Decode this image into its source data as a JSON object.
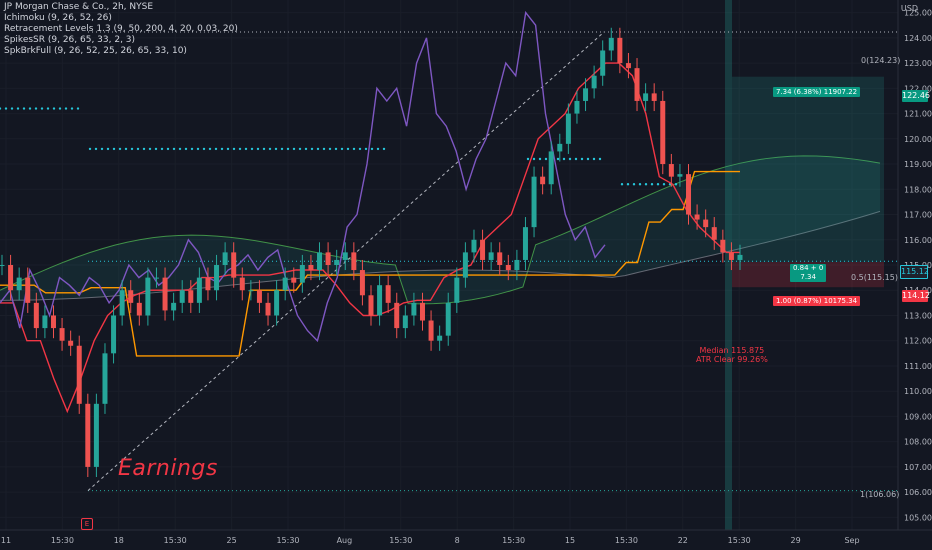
{
  "legend": {
    "title": "JP Morgan Chase & Co., 2h, NYSE",
    "l1": "Ichimoku (9, 26, 52, 26)",
    "l2": "Retracement Levels 1.3 (9, 50, 200, 4, 20, 0.03, 20)",
    "l3": "SpikesSR (9, 26, 65, 33, 2, 3)",
    "l4": "SpkBrkFull (9, 26, 52, 25, 26, 65, 33, 10)"
  },
  "currency": "USD",
  "annotation": "Earnings",
  "fib": {
    "top": "0(124.23)",
    "mid": "0.5(115.15)",
    "bottom": "1(106.06)"
  },
  "position": {
    "target_label": "7.34 (6.38%) 11907.22",
    "stop_label": "1.00 (0.87%) 10175.34",
    "center_line1": "0.84 + 0",
    "center_line2": "7.34"
  },
  "stats": {
    "median": "Median 115.875",
    "atr": "ATR Clear 99.26%"
  },
  "price_tags": {
    "target": "122.46",
    "current": "115.12",
    "stop": "114.12"
  },
  "colors": {
    "up": "#26a69a",
    "down": "#ef5350",
    "bg": "#131722",
    "grid": "#1e222d",
    "accent": "#2962ff"
  },
  "chart_data": {
    "type": "line",
    "title": "JP Morgan Chase & Co., 2h, NYSE",
    "ylim": [
      104.5,
      125.5
    ],
    "y_ticks": [
      105,
      106,
      107,
      108,
      109,
      110,
      111,
      112,
      113,
      114,
      115,
      116,
      117,
      118,
      119,
      120,
      121,
      122,
      123,
      124,
      125
    ],
    "x_ticks": [
      "11",
      "15:30",
      "18",
      "15:30",
      "25",
      "15:30",
      "Aug",
      "15:30",
      "8",
      "15:30",
      "15",
      "15:30",
      "22",
      "15:30",
      "29",
      "Sep"
    ],
    "series": [
      {
        "name": "Close",
        "values": [
          115,
          114,
          114.5,
          113.5,
          112.5,
          113,
          112.5,
          112,
          111.8,
          109.5,
          107,
          109.5,
          111.5,
          113,
          114,
          113.5,
          113,
          114.5,
          114.5,
          113.2,
          113.5,
          114,
          113.5,
          114.5,
          114,
          115,
          115.5,
          114.5,
          114,
          114,
          113.5,
          113,
          114,
          114.5,
          114.3,
          115,
          114.8,
          115.5,
          115,
          115.2,
          115.5,
          114.8,
          113.8,
          113,
          114.2,
          113.5,
          112.5,
          113,
          113.5,
          112.8,
          112,
          112.2,
          113.5,
          114.5,
          115.5,
          116,
          115.2,
          115.5,
          115,
          114.8,
          115.2,
          116.5,
          118.5,
          118.2,
          119.5,
          119.8,
          121,
          121.5,
          122,
          122.5,
          123.5,
          124,
          123,
          122.8,
          121.5,
          121.8,
          121.5,
          119,
          118.5,
          118.6,
          117,
          116.8,
          116.5,
          116,
          115.5,
          115.2,
          115.4
        ]
      },
      {
        "name": "Ichimoku Lagging",
        "values": [
          113.5,
          114,
          112.5,
          114.8,
          114,
          113,
          114.5,
          114.2,
          113.8,
          114.5,
          114.2,
          113.5,
          114,
          115,
          114.5,
          114.8,
          114.2,
          114.5,
          115,
          116,
          115.5,
          114.5,
          114.3,
          114.8,
          115,
          115.4,
          114.8,
          115.3,
          115.6,
          114.2,
          113,
          112.4,
          112,
          113.5,
          114.5,
          116.5,
          117,
          119,
          122,
          121.5,
          122,
          120.5,
          123,
          124,
          121,
          120.5,
          119.5,
          118,
          119.2,
          120,
          121.5,
          123,
          122.5,
          125,
          124.5,
          121,
          119,
          117,
          116,
          116.5,
          115.3,
          115.8
        ]
      },
      {
        "name": "Ichimoku Base",
        "values": [
          114.2,
          114.2,
          114.2,
          114.2,
          113.9,
          113.9,
          113.9,
          113.9,
          114.1,
          114.1,
          114.1,
          114.1,
          111.4,
          111.4,
          111.4,
          111.4,
          111.4,
          111.4,
          111.4,
          111.4,
          111.4,
          111.4,
          114,
          114,
          114,
          114,
          114,
          114.6,
          114.6,
          114.6,
          114.6,
          114.6,
          114.6,
          114.6,
          114.6,
          114.6,
          114.6,
          114.6,
          114.6,
          114.6,
          114.6,
          114.6,
          114.6,
          114.6,
          114.6,
          114.6,
          114.6,
          114.6,
          114.6,
          114.6,
          114.6,
          114.6,
          114.6,
          114.6,
          114.6,
          115.1,
          115.1,
          116.7,
          116.7,
          117.2,
          117.2,
          118.7,
          118.7,
          118.7,
          118.7,
          118.7
        ]
      },
      {
        "name": "Ichimoku Conversion",
        "values": [
          113.5,
          113.5,
          112,
          112,
          110.5,
          109.2,
          110.5,
          112,
          113,
          113.5,
          113.8,
          114,
          114,
          114,
          114,
          114.5,
          114.5,
          114.6,
          114.6,
          114.6,
          114.6,
          114.7,
          114.8,
          114.8,
          114.8,
          114.2,
          113.5,
          113,
          113,
          113.2,
          113.5,
          113.6,
          113.6,
          114.5,
          114.8,
          115,
          116,
          116.5,
          117,
          118.5,
          120,
          120.5,
          121,
          122,
          122.5,
          123,
          123,
          122.5,
          121,
          118.5,
          118.2,
          117.2,
          116.5,
          116,
          115.5,
          115.5
        ]
      }
    ]
  }
}
